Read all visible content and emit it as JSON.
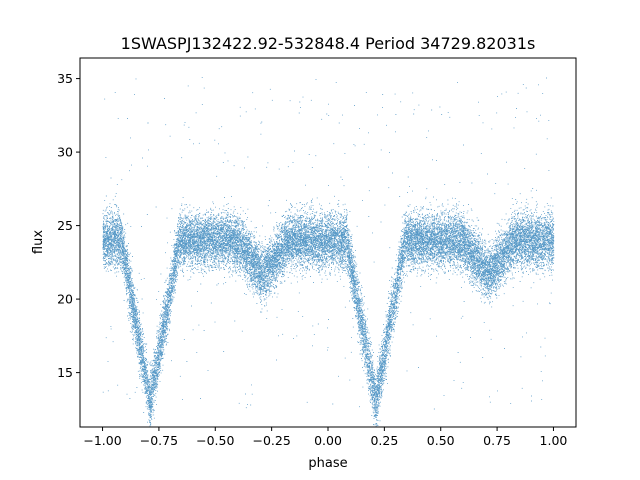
{
  "chart_data": {
    "type": "scatter",
    "title": "1SWASPJ132422.92-532848.4 Period 34729.82031s",
    "xlabel": "phase",
    "ylabel": "flux",
    "xlim": [
      -1.1,
      1.1
    ],
    "ylim": [
      11.3,
      36.4
    ],
    "xticks": [
      -1.0,
      -0.75,
      -0.5,
      -0.25,
      0.0,
      0.25,
      0.5,
      0.75,
      1.0
    ],
    "xtick_labels": [
      "−1.00",
      "−0.75",
      "−0.50",
      "−0.25",
      "0.00",
      "0.25",
      "0.50",
      "0.75",
      "1.00"
    ],
    "yticks": [
      15,
      20,
      25,
      30,
      35
    ],
    "ytick_labels": [
      "15",
      "20",
      "25",
      "30",
      "35"
    ],
    "grid": false,
    "series": [
      {
        "marker_color": "#1f77b4",
        "phase_range": [
          -1.0,
          1.0
        ],
        "baseline_flux": 24.0,
        "baseline_scatter": 0.9,
        "primary_eclipse": {
          "phase_centers": [
            -0.79,
            0.21
          ],
          "min_flux": 13.0,
          "half_width": 0.13
        },
        "secondary_eclipse": {
          "phase_centers": [
            -0.29,
            0.71
          ],
          "min_flux": 21.7,
          "half_width": 0.12
        },
        "outlier_flux_range": [
          12.5,
          35.2
        ]
      }
    ]
  }
}
